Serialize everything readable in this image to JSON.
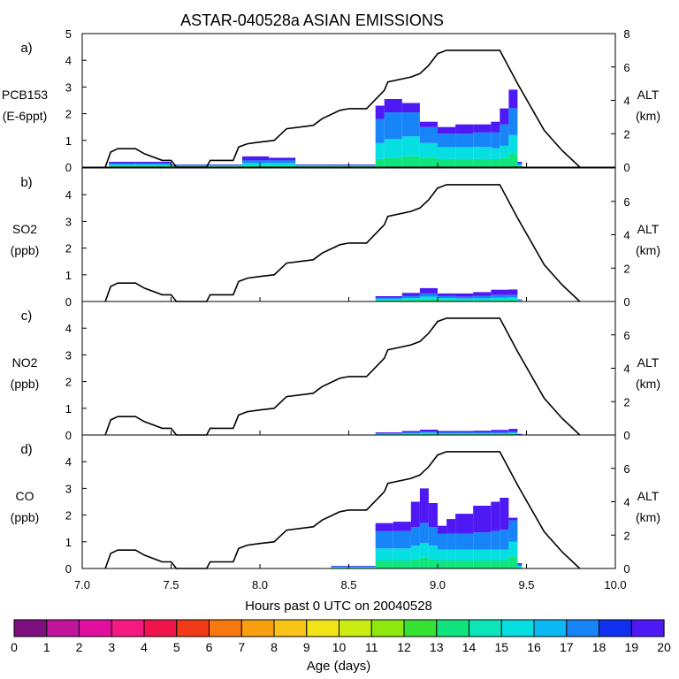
{
  "title": "ASTAR-040528a ASIAN EMISSIONS",
  "xlabel": "Hours past 0 UTC on 20040528",
  "x_ticks": [
    "7.0",
    "7.5",
    "8.0",
    "8.5",
    "9.0",
    "9.5",
    "10.0"
  ],
  "colorbar": {
    "label": "Age (days)",
    "ticks": [
      "0",
      "1",
      "2",
      "3",
      "4",
      "5",
      "6",
      "7",
      "8",
      "9",
      "10",
      "11",
      "12",
      "13",
      "14",
      "15",
      "16",
      "17",
      "18",
      "19",
      "20"
    ],
    "colors": [
      "#7d0f80",
      "#c0149c",
      "#e00fa0",
      "#f51a82",
      "#f2154c",
      "#f03a18",
      "#f8780f",
      "#f8a010",
      "#f8c418",
      "#f1e318",
      "#cbec12",
      "#8ee80e",
      "#37e233",
      "#10e47c",
      "#0ae6b8",
      "#06dfe2",
      "#0bbaf4",
      "#1785f7",
      "#1030f0",
      "#4f19f5"
    ]
  },
  "chart_data": [
    {
      "type": "area",
      "panel_label": "a)",
      "ylabel": [
        "PCB153",
        "(E-6ppt)"
      ],
      "y_ticks": [
        "0",
        "1",
        "2",
        "3",
        "4",
        "5"
      ],
      "ylim": [
        0,
        5
      ],
      "y2label": [
        "ALT",
        "(km)"
      ],
      "y2_ticks": [
        "0",
        "2",
        "4",
        "6",
        "8"
      ],
      "y2lim": [
        0,
        8
      ],
      "xlim": [
        7.0,
        10.0
      ],
      "altitude_km": [
        [
          7.13,
          0
        ],
        [
          7.16,
          0.9
        ],
        [
          7.2,
          1.1
        ],
        [
          7.3,
          1.1
        ],
        [
          7.35,
          0.8
        ],
        [
          7.45,
          0.4
        ],
        [
          7.5,
          0.4
        ],
        [
          7.53,
          0
        ],
        [
          7.7,
          0
        ],
        [
          7.72,
          0.4
        ],
        [
          7.85,
          0.4
        ],
        [
          7.88,
          1.2
        ],
        [
          7.93,
          1.4
        ],
        [
          8.0,
          1.5
        ],
        [
          8.08,
          1.6
        ],
        [
          8.15,
          2.3
        ],
        [
          8.3,
          2.5
        ],
        [
          8.35,
          2.9
        ],
        [
          8.45,
          3.4
        ],
        [
          8.5,
          3.5
        ],
        [
          8.6,
          3.5
        ],
        [
          8.7,
          4.6
        ],
        [
          8.72,
          5.1
        ],
        [
          8.85,
          5.4
        ],
        [
          8.9,
          5.6
        ],
        [
          8.95,
          6.1
        ],
        [
          9.0,
          6.8
        ],
        [
          9.05,
          7.0
        ],
        [
          9.2,
          7.0
        ],
        [
          9.35,
          7.0
        ],
        [
          9.45,
          5.0
        ],
        [
          9.6,
          2.2
        ],
        [
          9.7,
          1.0
        ],
        [
          9.8,
          0
        ]
      ],
      "age_bins_days": [
        14,
        16,
        18,
        20
      ],
      "series": [
        {
          "name": "14-16 days",
          "x": [
            7.15,
            7.3,
            7.5,
            7.9,
            8.05,
            8.2,
            8.4,
            8.6,
            8.65,
            8.7,
            8.8,
            8.9,
            9.0,
            9.1,
            9.2,
            9.3,
            9.35,
            9.4,
            9.45
          ],
          "values": [
            0.05,
            0.05,
            0.03,
            0.05,
            0.05,
            0.03,
            0.03,
            0.03,
            0.3,
            0.35,
            0.4,
            0.35,
            0.3,
            0.3,
            0.3,
            0.3,
            0.35,
            0.5,
            0.05
          ]
        },
        {
          "name": "16-18 days",
          "x": [
            7.15,
            7.3,
            7.5,
            7.9,
            8.05,
            8.2,
            8.4,
            8.6,
            8.65,
            8.7,
            8.8,
            8.9,
            9.0,
            9.1,
            9.2,
            9.3,
            9.35,
            9.4,
            9.45
          ],
          "values": [
            0.05,
            0.05,
            0.03,
            0.1,
            0.1,
            0.03,
            0.03,
            0.03,
            0.6,
            0.7,
            0.75,
            0.55,
            0.45,
            0.45,
            0.45,
            0.4,
            0.45,
            0.7,
            0.05
          ]
        },
        {
          "name": "18-20 days",
          "x": [
            7.15,
            7.3,
            7.5,
            7.9,
            8.05,
            8.2,
            8.4,
            8.6,
            8.65,
            8.7,
            8.8,
            8.9,
            9.0,
            9.1,
            9.2,
            9.3,
            9.35,
            9.4,
            9.45
          ],
          "values": [
            0.05,
            0.05,
            0.02,
            0.1,
            0.1,
            0.02,
            0.02,
            0.02,
            0.9,
            1.0,
            0.9,
            0.6,
            0.5,
            0.5,
            0.55,
            0.6,
            0.8,
            1.0,
            0.05
          ]
        },
        {
          "name": ">20 days",
          "x": [
            7.15,
            7.3,
            7.5,
            7.9,
            8.05,
            8.2,
            8.4,
            8.6,
            8.65,
            8.7,
            8.8,
            8.9,
            9.0,
            9.1,
            9.2,
            9.3,
            9.35,
            9.4,
            9.45
          ],
          "values": [
            0.05,
            0.05,
            0.02,
            0.15,
            0.1,
            0.02,
            0.02,
            0.02,
            0.5,
            0.5,
            0.35,
            0.2,
            0.25,
            0.35,
            0.3,
            0.4,
            0.6,
            0.7,
            0.05
          ]
        }
      ]
    },
    {
      "type": "area",
      "panel_label": "b)",
      "ylabel": [
        "SO2",
        "(ppb)"
      ],
      "y_ticks": [
        "0",
        "1",
        "2",
        "3",
        "4"
      ],
      "ylim": [
        0,
        5
      ],
      "y2label": [
        "ALT",
        "(km)"
      ],
      "y2_ticks": [
        "0",
        "2",
        "4",
        "6"
      ],
      "y2lim": [
        0,
        8
      ],
      "xlim": [
        7.0,
        10.0
      ],
      "altitude_km": [
        [
          7.13,
          0
        ],
        [
          7.16,
          0.9
        ],
        [
          7.2,
          1.1
        ],
        [
          7.3,
          1.1
        ],
        [
          7.35,
          0.8
        ],
        [
          7.45,
          0.4
        ],
        [
          7.5,
          0.4
        ],
        [
          7.53,
          0
        ],
        [
          7.7,
          0
        ],
        [
          7.72,
          0.4
        ],
        [
          7.85,
          0.4
        ],
        [
          7.88,
          1.2
        ],
        [
          7.93,
          1.4
        ],
        [
          8.0,
          1.5
        ],
        [
          8.08,
          1.6
        ],
        [
          8.15,
          2.3
        ],
        [
          8.3,
          2.5
        ],
        [
          8.35,
          2.9
        ],
        [
          8.45,
          3.4
        ],
        [
          8.5,
          3.5
        ],
        [
          8.6,
          3.5
        ],
        [
          8.7,
          4.6
        ],
        [
          8.72,
          5.1
        ],
        [
          8.85,
          5.4
        ],
        [
          8.9,
          5.6
        ],
        [
          8.95,
          6.1
        ],
        [
          9.0,
          6.8
        ],
        [
          9.05,
          7.0
        ],
        [
          9.2,
          7.0
        ],
        [
          9.35,
          7.0
        ],
        [
          9.45,
          5.0
        ],
        [
          9.6,
          2.2
        ],
        [
          9.7,
          1.0
        ],
        [
          9.8,
          0
        ]
      ],
      "age_bins_days": [
        14,
        16,
        18,
        20
      ],
      "series": [
        {
          "name": "14-16 days",
          "x": [
            8.65,
            8.8,
            8.9,
            9.0,
            9.1,
            9.2,
            9.3,
            9.4,
            9.45
          ],
          "values": [
            0.05,
            0.06,
            0.08,
            0.06,
            0.05,
            0.05,
            0.06,
            0.07,
            0.02
          ]
        },
        {
          "name": "16-18 days",
          "x": [
            8.65,
            8.8,
            8.9,
            9.0,
            9.1,
            9.2,
            9.3,
            9.4,
            9.45
          ],
          "values": [
            0.05,
            0.07,
            0.1,
            0.07,
            0.06,
            0.07,
            0.08,
            0.08,
            0.02
          ]
        },
        {
          "name": "18-20 days",
          "x": [
            8.65,
            8.8,
            8.9,
            9.0,
            9.1,
            9.2,
            9.3,
            9.4,
            9.45
          ],
          "values": [
            0.05,
            0.07,
            0.12,
            0.07,
            0.07,
            0.08,
            0.1,
            0.1,
            0.02
          ]
        },
        {
          "name": ">20 days",
          "x": [
            8.65,
            8.8,
            8.9,
            9.0,
            9.1,
            9.2,
            9.3,
            9.4,
            9.45
          ],
          "values": [
            0.05,
            0.12,
            0.2,
            0.1,
            0.12,
            0.15,
            0.2,
            0.2,
            0.02
          ]
        }
      ]
    },
    {
      "type": "area",
      "panel_label": "c)",
      "ylabel": [
        "NO2",
        "(ppb)"
      ],
      "y_ticks": [
        "0",
        "1",
        "2",
        "3",
        "4"
      ],
      "ylim": [
        0,
        5
      ],
      "y2label": [
        "ALT",
        "(km)"
      ],
      "y2_ticks": [
        "0",
        "2",
        "4",
        "6"
      ],
      "y2lim": [
        0,
        8
      ],
      "xlim": [
        7.0,
        10.0
      ],
      "altitude_km": [
        [
          7.13,
          0
        ],
        [
          7.16,
          0.9
        ],
        [
          7.2,
          1.1
        ],
        [
          7.3,
          1.1
        ],
        [
          7.35,
          0.8
        ],
        [
          7.45,
          0.4
        ],
        [
          7.5,
          0.4
        ],
        [
          7.53,
          0
        ],
        [
          7.7,
          0
        ],
        [
          7.72,
          0.4
        ],
        [
          7.85,
          0.4
        ],
        [
          7.88,
          1.2
        ],
        [
          7.93,
          1.4
        ],
        [
          8.0,
          1.5
        ],
        [
          8.08,
          1.6
        ],
        [
          8.15,
          2.3
        ],
        [
          8.3,
          2.5
        ],
        [
          8.35,
          2.9
        ],
        [
          8.45,
          3.4
        ],
        [
          8.5,
          3.5
        ],
        [
          8.6,
          3.5
        ],
        [
          8.7,
          4.6
        ],
        [
          8.72,
          5.1
        ],
        [
          8.85,
          5.4
        ],
        [
          8.9,
          5.6
        ],
        [
          8.95,
          6.1
        ],
        [
          9.0,
          6.8
        ],
        [
          9.05,
          7.0
        ],
        [
          9.2,
          7.0
        ],
        [
          9.35,
          7.0
        ],
        [
          9.45,
          5.0
        ],
        [
          9.6,
          2.2
        ],
        [
          9.7,
          1.0
        ],
        [
          9.8,
          0
        ]
      ],
      "age_bins_days": [
        14,
        16,
        18,
        20
      ],
      "series": [
        {
          "name": "14-16 days",
          "x": [
            8.65,
            8.8,
            8.9,
            9.0,
            9.1,
            9.2,
            9.3,
            9.4,
            9.45
          ],
          "values": [
            0.02,
            0.03,
            0.04,
            0.03,
            0.03,
            0.03,
            0.03,
            0.04,
            0.01
          ]
        },
        {
          "name": "16-18 days",
          "x": [
            8.65,
            8.8,
            8.9,
            9.0,
            9.1,
            9.2,
            9.3,
            9.4,
            9.45
          ],
          "values": [
            0.02,
            0.03,
            0.04,
            0.03,
            0.03,
            0.03,
            0.03,
            0.04,
            0.01
          ]
        },
        {
          "name": "18-20 days",
          "x": [
            8.65,
            8.8,
            8.9,
            9.0,
            9.1,
            9.2,
            9.3,
            9.4,
            9.45
          ],
          "values": [
            0.03,
            0.04,
            0.05,
            0.04,
            0.04,
            0.04,
            0.05,
            0.05,
            0.01
          ]
        },
        {
          "name": ">20 days",
          "x": [
            8.65,
            8.8,
            8.9,
            9.0,
            9.1,
            9.2,
            9.3,
            9.4,
            9.45
          ],
          "values": [
            0.03,
            0.05,
            0.07,
            0.05,
            0.05,
            0.06,
            0.08,
            0.1,
            0.01
          ]
        }
      ]
    },
    {
      "type": "area",
      "panel_label": "d)",
      "ylabel": [
        "CO",
        "(ppb)"
      ],
      "y_ticks": [
        "0",
        "1",
        "2",
        "3",
        "4"
      ],
      "ylim": [
        0,
        5
      ],
      "y2label": [
        "ALT",
        "(km)"
      ],
      "y2_ticks": [
        "0",
        "2",
        "4",
        "6"
      ],
      "y2lim": [
        0,
        8
      ],
      "xlim": [
        7.0,
        10.0
      ],
      "altitude_km": [
        [
          7.13,
          0
        ],
        [
          7.16,
          0.9
        ],
        [
          7.2,
          1.1
        ],
        [
          7.3,
          1.1
        ],
        [
          7.35,
          0.8
        ],
        [
          7.45,
          0.4
        ],
        [
          7.5,
          0.4
        ],
        [
          7.53,
          0
        ],
        [
          7.7,
          0
        ],
        [
          7.72,
          0.4
        ],
        [
          7.85,
          0.4
        ],
        [
          7.88,
          1.2
        ],
        [
          7.93,
          1.4
        ],
        [
          8.0,
          1.5
        ],
        [
          8.08,
          1.6
        ],
        [
          8.15,
          2.3
        ],
        [
          8.3,
          2.5
        ],
        [
          8.35,
          2.9
        ],
        [
          8.45,
          3.4
        ],
        [
          8.5,
          3.5
        ],
        [
          8.6,
          3.5
        ],
        [
          8.7,
          4.6
        ],
        [
          8.72,
          5.1
        ],
        [
          8.85,
          5.4
        ],
        [
          8.9,
          5.6
        ],
        [
          8.95,
          6.1
        ],
        [
          9.0,
          6.8
        ],
        [
          9.05,
          7.0
        ],
        [
          9.2,
          7.0
        ],
        [
          9.35,
          7.0
        ],
        [
          9.45,
          5.0
        ],
        [
          9.6,
          2.2
        ],
        [
          9.7,
          1.0
        ],
        [
          9.8,
          0
        ]
      ],
      "age_bins_days": [
        14,
        16,
        18,
        20
      ],
      "series": [
        {
          "name": "14-16 days",
          "x": [
            8.4,
            8.6,
            8.65,
            8.75,
            8.85,
            8.9,
            8.95,
            9.0,
            9.05,
            9.1,
            9.2,
            9.3,
            9.35,
            9.4,
            9.45
          ],
          "values": [
            0.03,
            0.03,
            0.3,
            0.3,
            0.35,
            0.4,
            0.35,
            0.3,
            0.3,
            0.3,
            0.3,
            0.3,
            0.3,
            0.45,
            0.05
          ]
        },
        {
          "name": "16-18 days",
          "x": [
            8.4,
            8.6,
            8.65,
            8.75,
            8.85,
            8.9,
            8.95,
            9.0,
            9.05,
            9.1,
            9.2,
            9.3,
            9.35,
            9.4,
            9.45
          ],
          "values": [
            0.03,
            0.03,
            0.45,
            0.45,
            0.5,
            0.55,
            0.5,
            0.4,
            0.4,
            0.4,
            0.4,
            0.4,
            0.4,
            0.55,
            0.05
          ]
        },
        {
          "name": "18-20 days",
          "x": [
            8.4,
            8.6,
            8.65,
            8.75,
            8.85,
            8.9,
            8.95,
            9.0,
            9.05,
            9.1,
            9.2,
            9.3,
            9.35,
            9.4,
            9.45
          ],
          "values": [
            0.02,
            0.02,
            0.65,
            0.65,
            0.7,
            0.75,
            0.7,
            0.6,
            0.6,
            0.6,
            0.65,
            0.7,
            0.75,
            0.8,
            0.05
          ]
        },
        {
          "name": ">20 days",
          "x": [
            8.4,
            8.6,
            8.65,
            8.75,
            8.85,
            8.9,
            8.95,
            9.0,
            9.05,
            9.1,
            9.2,
            9.3,
            9.35,
            9.4,
            9.45
          ],
          "values": [
            0.02,
            0.02,
            0.3,
            0.35,
            0.95,
            1.3,
            0.9,
            0.3,
            0.55,
            0.75,
            1.0,
            1.1,
            1.2,
            0.1,
            0.05
          ]
        }
      ]
    }
  ]
}
